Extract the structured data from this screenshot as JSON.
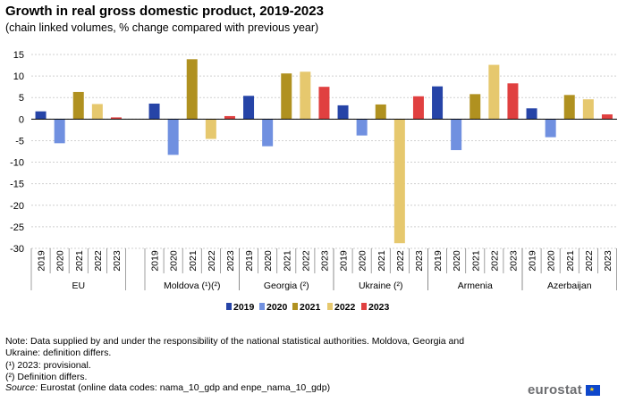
{
  "chart_data": {
    "type": "bar",
    "title": "Growth in real gross domestic product, 2019-2023",
    "subtitle": "(chain linked volumes, % change compared with previous year)",
    "ylim": [
      -30,
      15
    ],
    "yticks": [
      15,
      10,
      5,
      0,
      -5,
      -10,
      -15,
      -20,
      -25,
      -30
    ],
    "years": [
      "2019",
      "2020",
      "2021",
      "2022",
      "2023"
    ],
    "series_colors": [
      "#2644a7",
      "#7090e0",
      "#b09120",
      "#e6c86e",
      "#e04040"
    ],
    "groups": [
      {
        "name": "EU",
        "values": [
          1.8,
          -5.6,
          6.3,
          3.5,
          0.4
        ]
      },
      {
        "name": "Moldova (¹)(²)",
        "values": [
          3.6,
          -8.3,
          13.9,
          -4.6,
          0.7
        ]
      },
      {
        "name": "Georgia (²)",
        "values": [
          5.4,
          -6.3,
          10.6,
          11.0,
          7.5
        ]
      },
      {
        "name": "Ukraine (²)",
        "values": [
          3.2,
          -3.8,
          3.4,
          -28.8,
          5.3
        ]
      },
      {
        "name": "Armenia",
        "values": [
          7.6,
          -7.2,
          5.8,
          12.6,
          8.3
        ]
      },
      {
        "name": "Azerbaijan",
        "values": [
          2.5,
          -4.2,
          5.6,
          4.6,
          1.1
        ]
      }
    ]
  },
  "notes": {
    "line1": "Note: Data supplied by and under the responsibility of the national statistical authorities. Moldova, Georgia and Ukraine: definition differs.",
    "line2": "(¹) 2023: provisional.",
    "line3": "(²) Definition differs.",
    "source_label": "Source:",
    "source_text": " Eurostat (online data codes: nama_10_gdp and enpe_nama_10_gdp)"
  },
  "logo": {
    "text": "eurostat"
  }
}
